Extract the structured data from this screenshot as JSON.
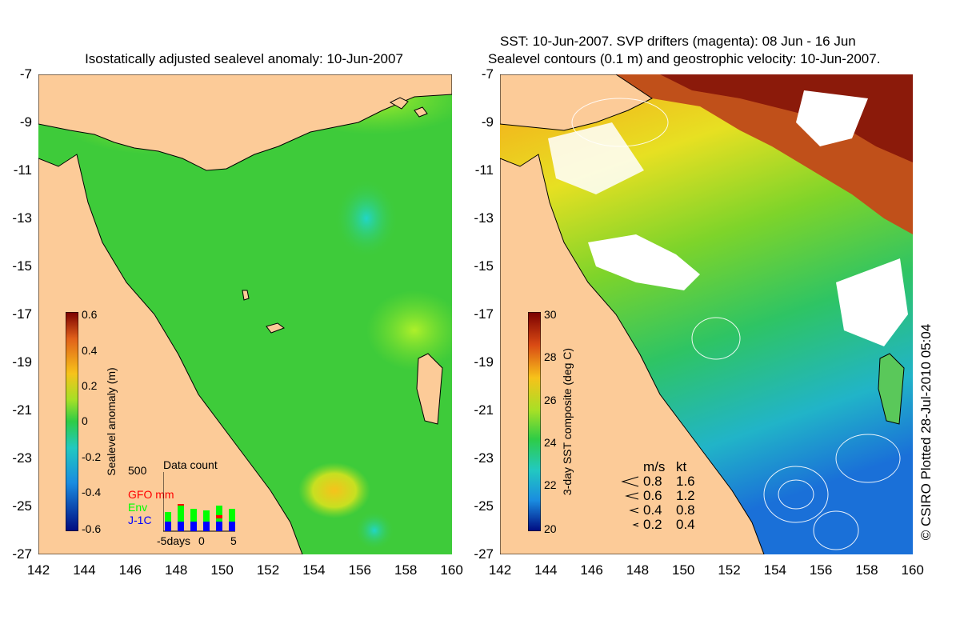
{
  "left_panel": {
    "title": "Isostatically adjusted sealevel anomaly: 10-Jun-2007",
    "colorbar": {
      "label": "Sealevel anomaly (m)",
      "ticks": [
        "0.6",
        "0.4",
        "0.2",
        "0",
        "-0.2",
        "-0.4",
        "-0.6"
      ]
    },
    "data_count": {
      "title": "Data count",
      "max_label": "500",
      "series": [
        {
          "name": "GFO mm",
          "color": "#ff0000"
        },
        {
          "name": "Env",
          "color": "#00ff00"
        },
        {
          "name": "J-1C",
          "color": "#0000ff"
        }
      ],
      "x_left": "-5days",
      "x_mid": "0",
      "x_right": "5"
    }
  },
  "right_panel": {
    "title_line1": "SST: 10-Jun-2007. SVP drifters (magenta): 08 Jun - 16 Jun",
    "title_line2": "Sealevel contours (0.1 m) and geostrophic velocity: 10-Jun-2007.",
    "colorbar": {
      "label": "3-day SST composite (deg C)",
      "ticks": [
        "30",
        "28",
        "26",
        "24",
        "22",
        "20"
      ]
    },
    "velocity_legend": {
      "header_ms": "m/s",
      "header_kt": "kt",
      "rows": [
        {
          "ms": "0.8",
          "kt": "1.6"
        },
        {
          "ms": "0.6",
          "kt": "1.2"
        },
        {
          "ms": "0.4",
          "kt": "0.8"
        },
        {
          "ms": "0.2",
          "kt": "0.4"
        }
      ]
    }
  },
  "axes": {
    "y_ticks": [
      "-7",
      "-9",
      "-11",
      "-13",
      "-15",
      "-17",
      "-19",
      "-21",
      "-23",
      "-25",
      "-27"
    ],
    "x_ticks": [
      "142",
      "144",
      "146",
      "148",
      "150",
      "152",
      "154",
      "156",
      "158",
      "160"
    ]
  },
  "credit": "© CSIRO Plotted 28-Jul-2010 05:04",
  "colors": {
    "land": "#fccb98",
    "ocean_green": "#3ecb3a",
    "sst_orange": "#f7a21a"
  }
}
